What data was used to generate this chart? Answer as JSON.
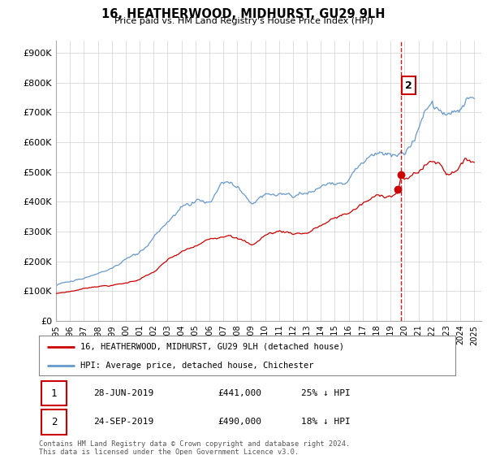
{
  "title": "16, HEATHERWOOD, MIDHURST, GU29 9LH",
  "subtitle": "Price paid vs. HM Land Registry's House Price Index (HPI)",
  "legend_label_red": "16, HEATHERWOOD, MIDHURST, GU29 9LH (detached house)",
  "legend_label_blue": "HPI: Average price, detached house, Chichester",
  "annotation1_date": "28-JUN-2019",
  "annotation1_price": "£441,000",
  "annotation1_hpi": "25% ↓ HPI",
  "annotation2_date": "24-SEP-2019",
  "annotation2_price": "£490,000",
  "annotation2_hpi": "18% ↓ HPI",
  "footer": "Contains HM Land Registry data © Crown copyright and database right 2024.\nThis data is licensed under the Open Government Licence v3.0.",
  "red_color": "#cc0000",
  "blue_color": "#6699cc",
  "point1_x": 2019.49,
  "point1_y": 441000,
  "point2_x": 2019.74,
  "point2_y": 490000,
  "vline_x": 2019.74,
  "xlim_left": 1995.0,
  "xlim_right": 2025.5,
  "ylim_bottom": 0,
  "ylim_top": 940000,
  "yticks": [
    0,
    100000,
    200000,
    300000,
    400000,
    500000,
    600000,
    700000,
    800000,
    900000
  ],
  "ytick_labels": [
    "£0",
    "£100K",
    "£200K",
    "£300K",
    "£400K",
    "£500K",
    "£600K",
    "£700K",
    "£800K",
    "£900K"
  ],
  "xticks": [
    1995,
    1996,
    1997,
    1998,
    1999,
    2000,
    2001,
    2002,
    2003,
    2004,
    2005,
    2006,
    2007,
    2008,
    2009,
    2010,
    2011,
    2012,
    2013,
    2014,
    2015,
    2016,
    2017,
    2018,
    2019,
    2020,
    2021,
    2022,
    2023,
    2024,
    2025
  ],
  "blue_anchors": [
    [
      1995.0,
      125000
    ],
    [
      1996.0,
      138000
    ],
    [
      1997.0,
      152000
    ],
    [
      1998.0,
      168000
    ],
    [
      1999.0,
      178000
    ],
    [
      2000.0,
      205000
    ],
    [
      2001.0,
      228000
    ],
    [
      2002.0,
      272000
    ],
    [
      2003.0,
      325000
    ],
    [
      2004.0,
      368000
    ],
    [
      2005.0,
      388000
    ],
    [
      2006.0,
      415000
    ],
    [
      2007.0,
      445000
    ],
    [
      2007.5,
      452000
    ],
    [
      2008.5,
      405000
    ],
    [
      2009.0,
      375000
    ],
    [
      2009.5,
      388000
    ],
    [
      2010.0,
      408000
    ],
    [
      2011.0,
      415000
    ],
    [
      2012.0,
      405000
    ],
    [
      2013.0,
      420000
    ],
    [
      2014.0,
      448000
    ],
    [
      2015.0,
      468000
    ],
    [
      2016.0,
      498000
    ],
    [
      2017.0,
      540000
    ],
    [
      2018.0,
      562000
    ],
    [
      2019.0,
      572000
    ],
    [
      2019.74,
      598000
    ],
    [
      2020.0,
      588000
    ],
    [
      2020.5,
      598000
    ],
    [
      2021.0,
      648000
    ],
    [
      2021.5,
      688000
    ],
    [
      2022.0,
      728000
    ],
    [
      2022.5,
      718000
    ],
    [
      2023.0,
      688000
    ],
    [
      2023.5,
      708000
    ],
    [
      2024.0,
      728000
    ],
    [
      2024.5,
      745000
    ],
    [
      2025.0,
      748000
    ]
  ],
  "red_anchors": [
    [
      1995.0,
      88000
    ],
    [
      1996.0,
      95000
    ],
    [
      1997.0,
      105000
    ],
    [
      1998.0,
      115000
    ],
    [
      1999.0,
      118000
    ],
    [
      2000.0,
      125000
    ],
    [
      2001.0,
      140000
    ],
    [
      2002.0,
      162000
    ],
    [
      2003.0,
      198000
    ],
    [
      2004.0,
      222000
    ],
    [
      2005.0,
      238000
    ],
    [
      2006.0,
      258000
    ],
    [
      2007.0,
      278000
    ],
    [
      2007.5,
      292000
    ],
    [
      2008.5,
      268000
    ],
    [
      2009.0,
      252000
    ],
    [
      2009.5,
      268000
    ],
    [
      2010.0,
      288000
    ],
    [
      2011.0,
      302000
    ],
    [
      2012.0,
      298000
    ],
    [
      2013.0,
      302000
    ],
    [
      2014.0,
      328000
    ],
    [
      2015.0,
      348000
    ],
    [
      2016.0,
      368000
    ],
    [
      2017.0,
      398000
    ],
    [
      2018.0,
      418000
    ],
    [
      2019.0,
      432000
    ],
    [
      2019.49,
      441000
    ],
    [
      2019.74,
      490000
    ],
    [
      2020.0,
      478000
    ],
    [
      2020.5,
      492000
    ],
    [
      2021.0,
      512000
    ],
    [
      2021.5,
      532000
    ],
    [
      2022.0,
      548000
    ],
    [
      2022.5,
      542000
    ],
    [
      2023.0,
      512000
    ],
    [
      2023.5,
      522000
    ],
    [
      2024.0,
      558000
    ],
    [
      2024.5,
      562000
    ],
    [
      2025.0,
      568000
    ]
  ]
}
